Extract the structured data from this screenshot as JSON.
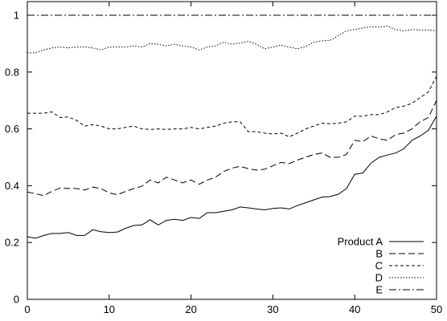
{
  "chart_data": {
    "type": "line",
    "x": [
      0,
      1,
      2,
      3,
      4,
      5,
      6,
      7,
      8,
      9,
      10,
      11,
      12,
      13,
      14,
      15,
      16,
      17,
      18,
      19,
      20,
      21,
      22,
      23,
      24,
      25,
      26,
      27,
      28,
      29,
      30,
      31,
      32,
      33,
      34,
      35,
      36,
      37,
      38,
      39,
      40,
      41,
      42,
      43,
      44,
      45,
      46,
      47,
      48,
      49,
      50
    ],
    "series": [
      {
        "name": "Product A",
        "style": "solid",
        "values": [
          0.22,
          0.215,
          0.225,
          0.232,
          0.232,
          0.235,
          0.225,
          0.225,
          0.245,
          0.238,
          0.235,
          0.237,
          0.25,
          0.26,
          0.262,
          0.28,
          0.262,
          0.278,
          0.282,
          0.278,
          0.288,
          0.285,
          0.305,
          0.305,
          0.31,
          0.315,
          0.325,
          0.322,
          0.318,
          0.315,
          0.32,
          0.322,
          0.318,
          0.33,
          0.34,
          0.35,
          0.36,
          0.362,
          0.37,
          0.39,
          0.44,
          0.445,
          0.48,
          0.5,
          0.508,
          0.515,
          0.53,
          0.56,
          0.575,
          0.595,
          0.645
        ]
      },
      {
        "name": "B",
        "style": "long-dash",
        "values": [
          0.378,
          0.372,
          0.365,
          0.38,
          0.392,
          0.39,
          0.39,
          0.385,
          0.395,
          0.39,
          0.375,
          0.368,
          0.38,
          0.39,
          0.398,
          0.42,
          0.41,
          0.43,
          0.42,
          0.41,
          0.42,
          0.405,
          0.42,
          0.43,
          0.45,
          0.462,
          0.468,
          0.46,
          0.455,
          0.458,
          0.47,
          0.482,
          0.478,
          0.49,
          0.5,
          0.51,
          0.515,
          0.5,
          0.5,
          0.51,
          0.56,
          0.555,
          0.575,
          0.565,
          0.56,
          0.58,
          0.585,
          0.6,
          0.625,
          0.64,
          0.7
        ]
      },
      {
        "name": "C",
        "style": "short-dash",
        "values": [
          0.655,
          0.655,
          0.655,
          0.66,
          0.64,
          0.642,
          0.63,
          0.61,
          0.615,
          0.61,
          0.6,
          0.6,
          0.605,
          0.61,
          0.6,
          0.598,
          0.6,
          0.598,
          0.6,
          0.6,
          0.605,
          0.6,
          0.605,
          0.61,
          0.62,
          0.625,
          0.625,
          0.59,
          0.59,
          0.585,
          0.582,
          0.585,
          0.572,
          0.585,
          0.6,
          0.61,
          0.62,
          0.618,
          0.62,
          0.625,
          0.645,
          0.645,
          0.65,
          0.65,
          0.66,
          0.675,
          0.68,
          0.69,
          0.71,
          0.73,
          0.785
        ]
      },
      {
        "name": "D",
        "style": "dotted",
        "values": [
          0.868,
          0.868,
          0.878,
          0.885,
          0.888,
          0.885,
          0.888,
          0.888,
          0.885,
          0.878,
          0.888,
          0.888,
          0.888,
          0.892,
          0.888,
          0.9,
          0.898,
          0.892,
          0.898,
          0.892,
          0.888,
          0.878,
          0.888,
          0.892,
          0.905,
          0.898,
          0.902,
          0.908,
          0.898,
          0.882,
          0.888,
          0.895,
          0.888,
          0.882,
          0.89,
          0.905,
          0.91,
          0.912,
          0.928,
          0.945,
          0.95,
          0.955,
          0.96,
          0.958,
          0.962,
          0.95,
          0.945,
          0.95,
          0.948,
          0.948,
          0.945
        ]
      },
      {
        "name": "E",
        "style": "dash-dot",
        "values": [
          1,
          1,
          1,
          1,
          1,
          1,
          1,
          1,
          1,
          1,
          1,
          1,
          1,
          1,
          1,
          1,
          1,
          1,
          1,
          1,
          1,
          1,
          1,
          1,
          1,
          1,
          1,
          1,
          1,
          1,
          1,
          1,
          1,
          1,
          1,
          1,
          1,
          1,
          1,
          1,
          1,
          1,
          1,
          1,
          1,
          1,
          1,
          1,
          1,
          1,
          1
        ]
      }
    ],
    "xlim": [
      0,
      50
    ],
    "ylim": [
      0,
      1.05
    ],
    "x_ticks": [
      0,
      10,
      20,
      30,
      40,
      50
    ],
    "y_ticks": [
      0,
      0.2,
      0.4,
      0.6,
      0.8,
      1
    ],
    "x_tick_labels": [
      "0",
      "10",
      "20",
      "30",
      "40",
      "50"
    ],
    "y_tick_labels": [
      "0",
      "0.2",
      "0.4",
      "0.6",
      "0.8",
      "1"
    ],
    "title": "",
    "xlabel": "",
    "ylabel": "",
    "grid": false,
    "legend_position": "bottom-right",
    "line_color": "#000000"
  }
}
